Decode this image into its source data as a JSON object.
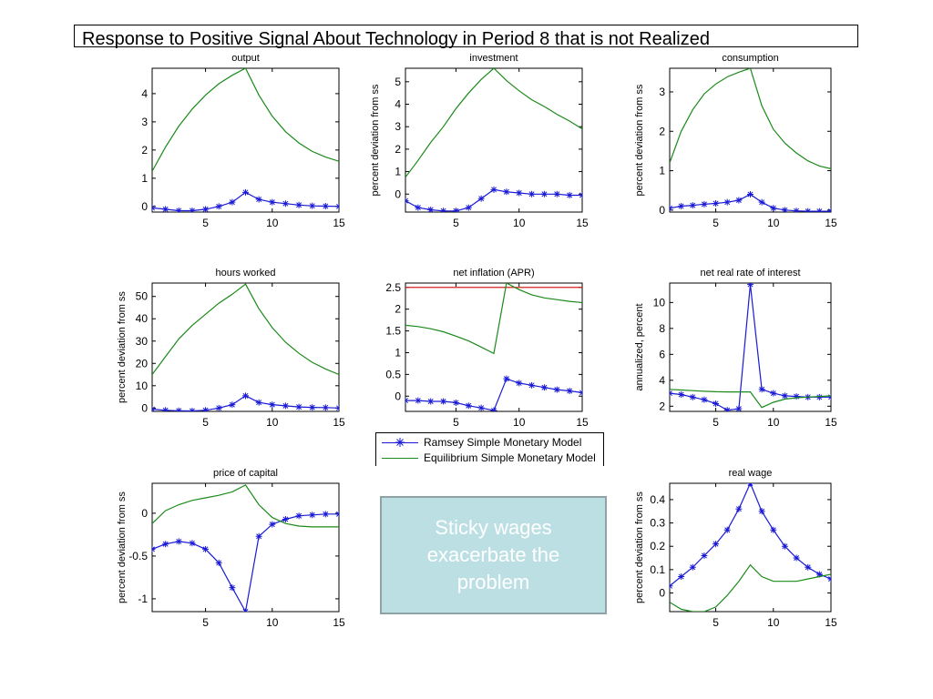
{
  "page": {
    "title": "Response to Positive Signal About Technology in Period 8 that is not Realized"
  },
  "legend": {
    "ramsey": "Ramsey Simple Monetary Model",
    "equilibrium": "Equilibrium Simple Monetary Model"
  },
  "callout": {
    "text": "Sticky wages exacerbate the problem"
  },
  "colors": {
    "ramsey": "#1a1ad6",
    "equilibrium": "#1a8a1a",
    "reference": "#d62020"
  },
  "chart_data": [
    {
      "type": "line",
      "title": "output",
      "ylabel": "",
      "xlim": [
        1,
        15
      ],
      "ylim": [
        -0.2,
        4.9
      ],
      "xticks": [
        5,
        10,
        15
      ],
      "yticks": [
        0,
        1,
        2,
        3,
        4
      ],
      "x": [
        1,
        2,
        3,
        4,
        5,
        6,
        7,
        8,
        9,
        10,
        11,
        12,
        13,
        14,
        15
      ],
      "series": [
        {
          "key": "ramsey",
          "name": "Ramsey Simple Monetary Model",
          "marker": "star",
          "values": [
            -0.05,
            -0.1,
            -0.15,
            -0.15,
            -0.1,
            0.0,
            0.15,
            0.5,
            0.25,
            0.15,
            0.1,
            0.05,
            0.02,
            0.01,
            0.0
          ]
        },
        {
          "key": "equilibrium",
          "name": "Equilibrium Simple Monetary Model",
          "values": [
            1.25,
            2.1,
            2.85,
            3.45,
            3.95,
            4.35,
            4.65,
            4.9,
            3.95,
            3.2,
            2.65,
            2.25,
            1.95,
            1.75,
            1.6
          ]
        }
      ]
    },
    {
      "type": "line",
      "title": "investment",
      "ylabel": "percent deviation from ss",
      "xlim": [
        1,
        15
      ],
      "ylim": [
        -0.8,
        5.6
      ],
      "xticks": [
        5,
        10,
        15
      ],
      "yticks": [
        0,
        1,
        2,
        3,
        4,
        5
      ],
      "x": [
        1,
        2,
        3,
        4,
        5,
        6,
        7,
        8,
        9,
        10,
        11,
        12,
        13,
        14,
        15
      ],
      "series": [
        {
          "key": "ramsey",
          "name": "Ramsey Simple Monetary Model",
          "marker": "star",
          "values": [
            -0.3,
            -0.6,
            -0.7,
            -0.75,
            -0.75,
            -0.6,
            -0.2,
            0.2,
            0.1,
            0.05,
            0.0,
            0.0,
            0.0,
            -0.05,
            -0.05
          ]
        },
        {
          "key": "equilibrium",
          "name": "Equilibrium Simple Monetary Model",
          "values": [
            0.75,
            1.5,
            2.3,
            3.0,
            3.8,
            4.5,
            5.1,
            5.6,
            5.05,
            4.6,
            4.2,
            3.9,
            3.55,
            3.25,
            2.9
          ]
        }
      ]
    },
    {
      "type": "line",
      "title": "consumption",
      "ylabel": "percent deviation from ss",
      "xlim": [
        1,
        15
      ],
      "ylim": [
        -0.05,
        3.6
      ],
      "xticks": [
        5,
        10,
        15
      ],
      "yticks": [
        0,
        1,
        2,
        3
      ],
      "x": [
        1,
        2,
        3,
        4,
        5,
        6,
        7,
        8,
        9,
        10,
        11,
        12,
        13,
        14,
        15
      ],
      "series": [
        {
          "key": "ramsey",
          "name": "Ramsey Simple Monetary Model",
          "marker": "star",
          "values": [
            0.05,
            0.1,
            0.12,
            0.15,
            0.17,
            0.2,
            0.25,
            0.4,
            0.2,
            0.05,
            0.0,
            -0.02,
            -0.03,
            -0.03,
            -0.03
          ]
        },
        {
          "key": "equilibrium",
          "name": "Equilibrium Simple Monetary Model",
          "values": [
            1.2,
            2.0,
            2.55,
            2.95,
            3.2,
            3.38,
            3.5,
            3.6,
            2.65,
            2.05,
            1.7,
            1.45,
            1.25,
            1.12,
            1.05
          ]
        }
      ]
    },
    {
      "type": "line",
      "title": "hours worked",
      "ylabel": "percent deviation from ss",
      "xlim": [
        1,
        15
      ],
      "ylim": [
        -1.5,
        56
      ],
      "xticks": [
        5,
        10,
        15
      ],
      "yticks": [
        0,
        10,
        20,
        30,
        40,
        50
      ],
      "x": [
        1,
        2,
        3,
        4,
        5,
        6,
        7,
        8,
        9,
        10,
        11,
        12,
        13,
        14,
        15
      ],
      "series": [
        {
          "key": "ramsey",
          "name": "Ramsey Simple Monetary Model",
          "marker": "star",
          "values": [
            -0.5,
            -1.0,
            -1.2,
            -1.3,
            -1.0,
            0.0,
            1.5,
            5.5,
            2.5,
            1.5,
            1.0,
            0.5,
            0.3,
            0.2,
            0.0
          ]
        },
        {
          "key": "equilibrium",
          "name": "Equilibrium Simple Monetary Model",
          "values": [
            15,
            23,
            31,
            37,
            42,
            47,
            51,
            55.5,
            44.5,
            36,
            29.5,
            24.5,
            20.5,
            17.5,
            15
          ]
        }
      ]
    },
    {
      "type": "line",
      "title": "net inflation (APR)",
      "ylabel": "",
      "xlim": [
        1,
        15
      ],
      "ylim": [
        -0.35,
        2.6
      ],
      "xticks": [
        5,
        10,
        15
      ],
      "yticks": [
        0,
        0.5,
        1,
        1.5,
        2,
        2.5
      ],
      "ytick_labels": [
        "0",
        "0.5",
        "1",
        "1.5",
        "2",
        "2.5"
      ],
      "reference_line": 2.5,
      "x": [
        1,
        2,
        3,
        4,
        5,
        6,
        7,
        8,
        9,
        10,
        11,
        12,
        13,
        14,
        15
      ],
      "series": [
        {
          "key": "ramsey",
          "name": "Ramsey Simple Monetary Model",
          "marker": "star",
          "values": [
            -0.1,
            -0.1,
            -0.12,
            -0.12,
            -0.15,
            -0.22,
            -0.27,
            -0.33,
            0.4,
            0.3,
            0.25,
            0.2,
            0.15,
            0.12,
            0.08
          ]
        },
        {
          "key": "equilibrium",
          "name": "Equilibrium Simple Monetary Model",
          "values": [
            1.63,
            1.6,
            1.55,
            1.48,
            1.38,
            1.27,
            1.13,
            0.98,
            2.6,
            2.45,
            2.33,
            2.26,
            2.22,
            2.18,
            2.15
          ]
        }
      ]
    },
    {
      "type": "line",
      "title": "net real rate of interest",
      "ylabel": "annualized, percent",
      "xlim": [
        1,
        15
      ],
      "ylim": [
        1.6,
        11.5
      ],
      "xticks": [
        5,
        10,
        15
      ],
      "yticks": [
        2,
        4,
        6,
        8,
        10
      ],
      "x": [
        1,
        2,
        3,
        4,
        5,
        6,
        7,
        8,
        9,
        10,
        11,
        12,
        13,
        14,
        15
      ],
      "series": [
        {
          "key": "ramsey",
          "name": "Ramsey Simple Monetary Model",
          "marker": "star",
          "values": [
            3.0,
            2.9,
            2.7,
            2.5,
            2.2,
            1.7,
            1.8,
            11.4,
            3.3,
            3.0,
            2.8,
            2.75,
            2.7,
            2.7,
            2.7
          ]
        },
        {
          "key": "equilibrium",
          "name": "Equilibrium Simple Monetary Model",
          "values": [
            3.3,
            3.25,
            3.2,
            3.15,
            3.12,
            3.1,
            3.1,
            3.1,
            1.9,
            2.3,
            2.55,
            2.65,
            2.7,
            2.75,
            2.8
          ]
        }
      ]
    },
    {
      "type": "line",
      "title": "price of capital",
      "ylabel": "percent deviation from ss",
      "xlim": [
        1,
        15
      ],
      "ylim": [
        -1.15,
        0.35
      ],
      "xticks": [
        5,
        10,
        15
      ],
      "yticks": [
        -1,
        -0.5,
        0
      ],
      "ytick_labels": [
        "-1",
        "-0.5",
        "0"
      ],
      "x": [
        1,
        2,
        3,
        4,
        5,
        6,
        7,
        8,
        9,
        10,
        11,
        12,
        13,
        14,
        15
      ],
      "series": [
        {
          "key": "ramsey",
          "name": "Ramsey Simple Monetary Model",
          "marker": "star",
          "values": [
            -0.42,
            -0.36,
            -0.33,
            -0.35,
            -0.42,
            -0.58,
            -0.87,
            -1.15,
            -0.27,
            -0.13,
            -0.07,
            -0.03,
            -0.02,
            -0.01,
            -0.01
          ]
        },
        {
          "key": "equilibrium",
          "name": "Equilibrium Simple Monetary Model",
          "values": [
            -0.12,
            0.03,
            0.1,
            0.15,
            0.18,
            0.21,
            0.25,
            0.33,
            0.1,
            -0.05,
            -0.12,
            -0.15,
            -0.16,
            -0.16,
            -0.16
          ]
        }
      ]
    },
    {
      "type": "line",
      "title": "real wage",
      "ylabel": "percent deviation from ss",
      "xlim": [
        1,
        15
      ],
      "ylim": [
        -0.08,
        0.47
      ],
      "xticks": [
        5,
        10,
        15
      ],
      "yticks": [
        0,
        0.1,
        0.2,
        0.3,
        0.4
      ],
      "ytick_labels": [
        "0",
        "0.1",
        "0.2",
        "0.3",
        "0.4"
      ],
      "x": [
        1,
        2,
        3,
        4,
        5,
        6,
        7,
        8,
        9,
        10,
        11,
        12,
        13,
        14,
        15
      ],
      "series": [
        {
          "key": "ramsey",
          "name": "Ramsey Simple Monetary Model",
          "marker": "star",
          "values": [
            0.03,
            0.07,
            0.11,
            0.16,
            0.21,
            0.27,
            0.36,
            0.47,
            0.35,
            0.27,
            0.2,
            0.15,
            0.11,
            0.08,
            0.06
          ]
        },
        {
          "key": "equilibrium",
          "name": "Equilibrium Simple Monetary Model",
          "values": [
            -0.04,
            -0.07,
            -0.08,
            -0.08,
            -0.06,
            -0.01,
            0.05,
            0.12,
            0.07,
            0.05,
            0.05,
            0.05,
            0.06,
            0.07,
            0.08
          ]
        }
      ]
    }
  ]
}
